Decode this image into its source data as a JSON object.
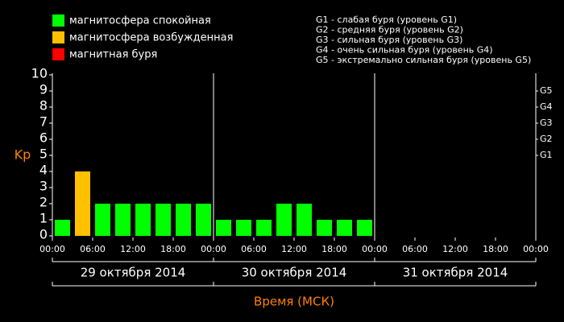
{
  "chart_data": {
    "type": "bar",
    "ylabel": "Kp",
    "xlabel": "Время (МСК)",
    "legend": [
      {
        "name": "магнитосфера спокойная",
        "color": "#00ff00"
      },
      {
        "name": "магнитосфера возбужденная",
        "color": "#ffc000"
      },
      {
        "name": "магнитная буря",
        "color": "#ff0000"
      }
    ],
    "notes": [
      "G1 - слабая буря (уровень G1)",
      "G2 - средняя буря (уровень G2)",
      "G3 - сильная буря (уровень G3)",
      "G4 - очень сильная буря (уровень G4)",
      "G5 - экстремально сильная буря (уровень G5)"
    ],
    "x": [
      0,
      3,
      6,
      9,
      12,
      15,
      18,
      21,
      24,
      27,
      30,
      33,
      36,
      39,
      42,
      45,
      48,
      51,
      54,
      57,
      60,
      63,
      66,
      69
    ],
    "bar_width": 3,
    "values": [
      1,
      4,
      2,
      2,
      2,
      2,
      2,
      2,
      1,
      1,
      1,
      2,
      2,
      1,
      1,
      1,
      null,
      null,
      null,
      null,
      null,
      null,
      null,
      null
    ],
    "colors": [
      "#00ff00",
      "#ffc000",
      "#00ff00",
      "#00ff00",
      "#00ff00",
      "#00ff00",
      "#00ff00",
      "#00ff00",
      "#00ff00",
      "#00ff00",
      "#00ff00",
      "#00ff00",
      "#00ff00",
      "#00ff00",
      "#00ff00",
      "#00ff00",
      null,
      null,
      null,
      null,
      null,
      null,
      null,
      null
    ],
    "xlim": [
      0,
      72
    ],
    "xticks": [
      {
        "value": 0,
        "label": "00:00"
      },
      {
        "value": 6,
        "label": "06:00"
      },
      {
        "value": 12,
        "label": "12:00"
      },
      {
        "value": 18,
        "label": "18:00"
      },
      {
        "value": 24,
        "label": "00:00"
      },
      {
        "value": 30,
        "label": "06:00"
      },
      {
        "value": 36,
        "label": "12:00"
      },
      {
        "value": 42,
        "label": "18:00"
      },
      {
        "value": 48,
        "label": "00:00"
      },
      {
        "value": 54,
        "label": "06:00"
      },
      {
        "value": 60,
        "label": "12:00"
      },
      {
        "value": 66,
        "label": "18:00"
      },
      {
        "value": 72,
        "label": "00:00"
      }
    ],
    "days": [
      {
        "value": 12,
        "label": "29 октября 2014"
      },
      {
        "value": 36,
        "label": "30 октября 2014"
      },
      {
        "value": 60,
        "label": "31 октября 2014"
      }
    ],
    "day_separators": [
      24,
      48
    ],
    "ylim": [
      0,
      10
    ],
    "yticks": [
      0,
      1,
      2,
      3,
      4,
      5,
      6,
      7,
      8,
      9,
      10
    ],
    "gticks": [
      {
        "value": 5,
        "label": "G1"
      },
      {
        "value": 6,
        "label": "G2"
      },
      {
        "value": 7,
        "label": "G3"
      },
      {
        "value": 8,
        "label": "G4"
      },
      {
        "value": 9,
        "label": "G5"
      }
    ]
  }
}
